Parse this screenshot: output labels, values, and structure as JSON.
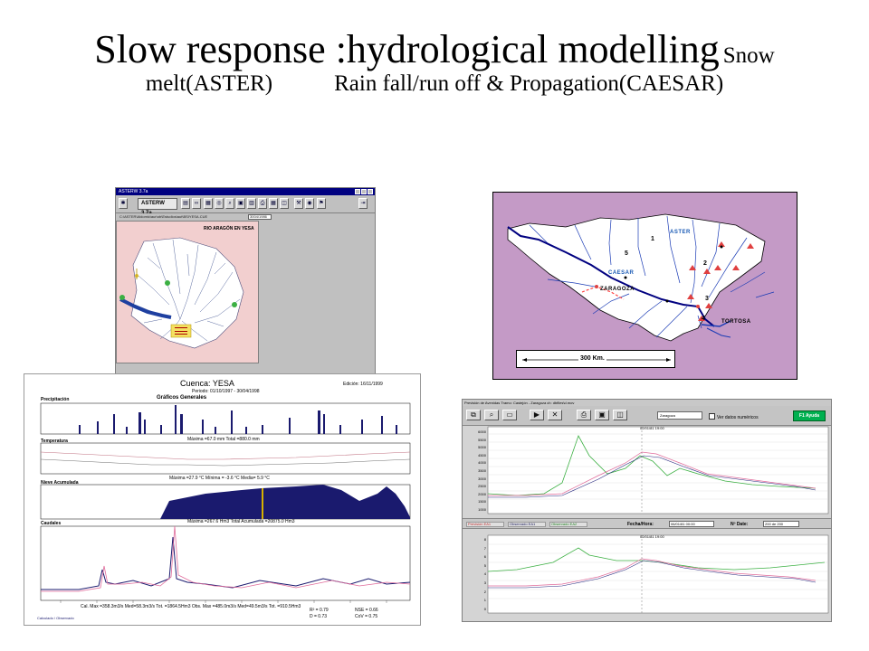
{
  "slide": {
    "title_main": "Slow response :hydrological  modelling",
    "title_small": "Snow",
    "title_line2_left": "melt(ASTER)",
    "title_line2_right": "Rain fall/run off & Propagation(CAESAR)"
  },
  "aster_window": {
    "title": "ASTERW 3.7a",
    "toolbar_label": "ASTERW 3.7a",
    "path": "C:\\ASTER\\Aldomic\\aur\\ob\\Estudios\\aut\\BSIYESA.CUE",
    "code": "3004/1986",
    "map_title": "RIO ARAGÓN EN YESA",
    "toolbar_icons": [
      "exit-icon",
      "folder-icon",
      "chart-icon",
      "compass-icon",
      "tools-icon",
      "grid-icon",
      "save-icon",
      "print-icon",
      "table-icon",
      "chart-icon",
      "camera-icon",
      "door-icon"
    ]
  },
  "ebro_map": {
    "labels": {
      "aster": "ASTER",
      "caesar": "CAESAR",
      "zaragoza": "ZARAGOZA",
      "tortosa": "TORTOSA"
    },
    "numbers": [
      "1",
      "2",
      "3",
      "4",
      "5"
    ],
    "scale": "300  Km.",
    "colors": {
      "background": "#c49ac6",
      "land": "#ffffff",
      "rivers": "#1a3bb5",
      "main_river": "#000080",
      "markers": "#e04040"
    }
  },
  "yesa_report": {
    "title": "Cuenca: YESA",
    "period": "Periodo: 01/10/1997 - 30/04/1998",
    "edition": "Edición: 16/11/1999",
    "subtitle": "Gráficos Generales",
    "sections": {
      "precip": "Precipitación",
      "temp": "Temperatura",
      "snow": "Nieve Acumulada",
      "flow": "Caudales"
    },
    "stats": {
      "precip": "Máxima =67.0 mm   Total =880.0 mm",
      "temp": "Máxima =27.9 °C   Mínima = -3.6 °C   Media= 5.9 °C",
      "snow": "Máxima =267.6 Hm3   Total Acumulada =20875.0 Hm3",
      "flow": "Cal. Max =358.3m3/s Med=58.3m3/s Tot. =1864.5Hm3   Obs. Max =485.0m3/s Med=49.5m3/s Tot. =910.5Hm3",
      "r2": "R² = 0.79",
      "nse": "NSE = 0.66",
      "d": "D = 0.73",
      "cv": "CoV = 0.75"
    },
    "months": [
      "Oct",
      "Nov",
      "15",
      "Dic",
      "15",
      "Ene",
      "15",
      "Feb",
      "15",
      "Mar",
      "15",
      "Abr",
      "15"
    ],
    "legend": "Calculado / Observado"
  },
  "caesar_window": {
    "menu_text": "Previsión de Avenidas   Tramo: Castejón - Zaragoza   ch: dbfiles\\d.mov",
    "dropdown": "Zaragoza",
    "checkbox_label": "Ver datos numéricos",
    "help_button": "F1 Ayuda",
    "legend_items": [
      "Previsión EA1",
      "Observado EA1",
      "Observado EA2"
    ],
    "date_label": "Fecha/Hora:",
    "date_value": "06/01/81  00:00",
    "n_label": "Nº Date:",
    "n_value": "200 de 200",
    "top_yaxis": [
      "6000",
      "5500",
      "5000",
      "4500",
      "4000",
      "3500",
      "3000",
      "2500",
      "2000",
      "1500",
      "1000"
    ],
    "bottom_yaxis": [
      "8",
      "7",
      "6",
      "5",
      "4",
      "3",
      "2",
      "1",
      "0"
    ],
    "top_annot": "02/01/81  19:00",
    "bottom_annot": "02/01/81  19:00"
  }
}
